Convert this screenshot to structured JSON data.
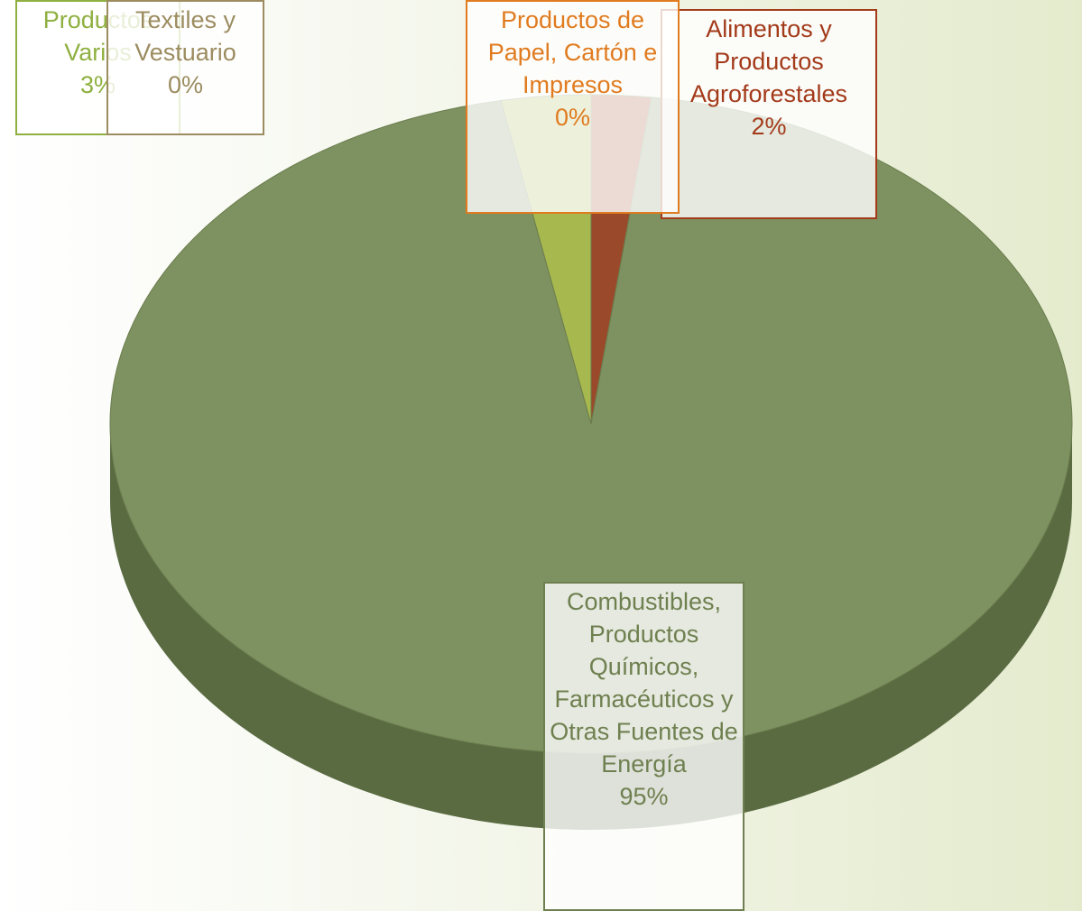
{
  "chart_data": {
    "type": "pie",
    "categories": [
      "Alimentos y Productos Agroforestales",
      "Combustibles, Productos Químicos, Farmacéuticos y Otras Fuentes de Energía",
      "Productos Varios",
      "Textiles y Vestuario",
      "Productos de Papel, Cartón e Impresos"
    ],
    "values": [
      2,
      95,
      3,
      0,
      0
    ],
    "value_labels": [
      "2%",
      "95%",
      "3%",
      "0%",
      "0%"
    ],
    "colors": [
      "#9a4a2a",
      "#7e9160",
      "#a6b84e",
      "#9c8c60",
      "#e08a30"
    ],
    "label_colors": [
      "#a33a1a",
      "#6f8050",
      "#8fb040",
      "#9c8c60",
      "#e07b20"
    ]
  }
}
